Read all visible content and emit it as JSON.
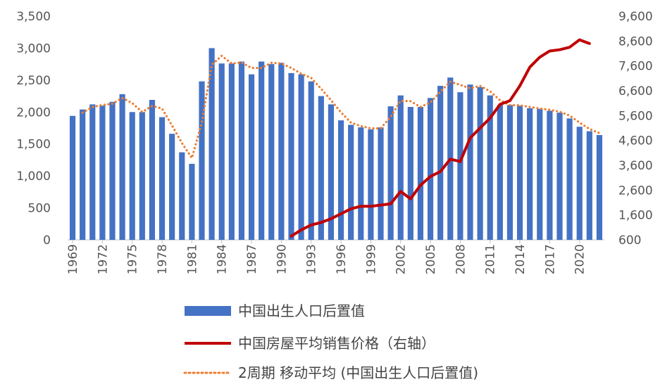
{
  "chart_data": {
    "type": "bar",
    "x": [
      1969,
      1970,
      1971,
      1972,
      1973,
      1974,
      1975,
      1976,
      1977,
      1978,
      1979,
      1980,
      1981,
      1982,
      1983,
      1984,
      1985,
      1986,
      1987,
      1988,
      1989,
      1990,
      1991,
      1992,
      1993,
      1994,
      1995,
      1996,
      1997,
      1998,
      1999,
      2000,
      2001,
      2002,
      2003,
      2004,
      2005,
      2006,
      2007,
      2008,
      2009,
      2010,
      2011,
      2012,
      2013,
      2014,
      2015,
      2016,
      2017,
      2018,
      2019,
      2020,
      2021,
      2022
    ],
    "x_tick_labels": [
      "1969",
      "1972",
      "1975",
      "1978",
      "1981",
      "1984",
      "1987",
      "1990",
      "1993",
      "1996",
      "1999",
      "2002",
      "2005",
      "2008",
      "2011",
      "2014",
      "2017",
      "2020"
    ],
    "y_left_ticks": [
      "0",
      "500",
      "1,000",
      "1,500",
      "2,000",
      "2,500",
      "3,000",
      "3,500"
    ],
    "y_right_ticks": [
      "600",
      "1,600",
      "2,600",
      "3,600",
      "4,600",
      "5,600",
      "6,600",
      "7,600",
      "8,600",
      "9,600"
    ],
    "ylim_left": [
      0,
      3500
    ],
    "ylim_right": [
      600,
      9600
    ],
    "grid": false,
    "legend_placement": "bottom",
    "colors": {
      "bars": "#4472C4",
      "price": "#C00000",
      "moving_avg": "#ED7D31"
    },
    "series": [
      {
        "name": "中国出生人口后置值",
        "type": "bar",
        "axis": "left",
        "values": [
          1940,
          2040,
          2120,
          2100,
          2160,
          2280,
          2000,
          2000,
          2190,
          1920,
          1660,
          1370,
          1190,
          2480,
          3000,
          2760,
          2760,
          2790,
          2590,
          2790,
          2750,
          2770,
          2610,
          2590,
          2480,
          2250,
          2120,
          1870,
          1800,
          1760,
          1730,
          1760,
          2090,
          2260,
          2080,
          2080,
          2220,
          2410,
          2540,
          2310,
          2430,
          2390,
          2260,
          2110,
          2110,
          2100,
          2060,
          2050,
          2020,
          1990,
          1900,
          1770,
          1700,
          1640
        ]
      },
      {
        "name": "中国房屋平均销售价格（右轴）",
        "type": "line",
        "axis": "right",
        "values": [
          null,
          null,
          null,
          null,
          null,
          null,
          null,
          null,
          null,
          null,
          null,
          null,
          null,
          null,
          null,
          null,
          null,
          null,
          null,
          null,
          null,
          null,
          750,
          1000,
          1200,
          1300,
          1450,
          1650,
          1850,
          1950,
          1950,
          2000,
          2050,
          2550,
          2250,
          2800,
          3150,
          3350,
          3850,
          3750,
          4700,
          5100,
          5500,
          6050,
          6200,
          6800,
          7550,
          7950,
          8200,
          8250,
          8350,
          8650,
          8500,
          null
        ]
      },
      {
        "name": "2周期 移动平均 (中国出生人口后置值)",
        "type": "line",
        "axis": "left",
        "values": [
          null,
          1990,
          2080,
          2110,
          2130,
          2220,
          2140,
          2000,
          2095,
          2055,
          1790,
          1515,
          1280,
          1835,
          2740,
          2880,
          2760,
          2775,
          2690,
          2690,
          2770,
          2760,
          2690,
          2600,
          2535,
          2365,
          2185,
          1995,
          1835,
          1780,
          1745,
          1745,
          1925,
          2175,
          2170,
          2080,
          2150,
          2315,
          2475,
          2425,
          2370,
          2410,
          2325,
          2185,
          2110,
          2105,
          2080,
          2055,
          2035,
          2005,
          1945,
          1835,
          1735,
          1670
        ]
      }
    ]
  }
}
